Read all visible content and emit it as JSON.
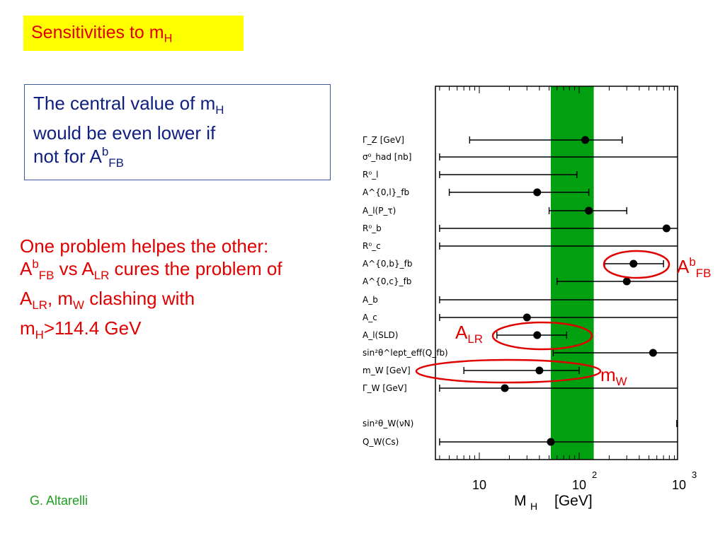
{
  "slide": {
    "title_main": "Sensitivities to m",
    "title_sub": "H",
    "note_line1_main": "The central value of m",
    "note_line1_sub": "H",
    "note_line2": "would be even lower if",
    "note_line3_main": "not for A",
    "note_line3_sup": "b",
    "note_line3_sub": "FB",
    "red_line1": "One problem helpes the other:",
    "red_A": "A",
    "red_b": "b",
    "red_FB": "FB",
    "red_vs": " vs A",
    "red_LR": "LR",
    "red_cures": " cures the problem of A",
    "red_LR2": "LR",
    "red_mw": ", m",
    "red_W": "W",
    "red_clash": " clashing with",
    "red_mH": "m",
    "red_H": "H",
    "red_limit": ">114.4 GeV",
    "credit": "G. Altarelli"
  },
  "annotations": {
    "afb_main": "A",
    "afb_sup": "b",
    "afb_sub": "FB",
    "alr_main": "A",
    "alr_sub": "LR",
    "mw_main": "m",
    "mw_sub": "W",
    "ellipse_color": "#e00000"
  },
  "chart_data": {
    "type": "scatter",
    "xscale": "log",
    "xlim": [
      4,
      1000
    ],
    "xlabel": "M_H [GeV]",
    "xlabel_main": "M",
    "xlabel_sub": "H",
    "xlabel_unit": "[GeV]",
    "xticks": [
      {
        "value": 10,
        "base": "10",
        "exp": ""
      },
      {
        "value": 100,
        "base": "10",
        "exp": "2"
      },
      {
        "value": 1000,
        "base": "10",
        "exp": "3"
      }
    ],
    "band": {
      "x0": 52,
      "x1": 140,
      "color": "#00a010"
    },
    "observables": [
      {
        "label": "Γ_Z [GeV]",
        "central": 115,
        "low": 8,
        "high": 270
      },
      {
        "label": "σ⁰_had [nb]",
        "central": null,
        "low": 4,
        "high": 1000
      },
      {
        "label": "R⁰_l",
        "central": null,
        "low": 4,
        "high": 95
      },
      {
        "label": "A^{0,l}_fb",
        "central": 38,
        "low": 5,
        "high": 125
      },
      {
        "label": "A_l(P_τ)",
        "central": 125,
        "low": 50,
        "high": 300
      },
      {
        "label": "R⁰_b",
        "central": 750,
        "low": 4,
        "high": 1000
      },
      {
        "label": "R⁰_c",
        "central": null,
        "low": 4,
        "high": 1000
      },
      {
        "label": "A^{0,b}_fb",
        "central": 350,
        "low": 180,
        "high": 700
      },
      {
        "label": "A^{0,c}_fb",
        "central": 300,
        "low": 60,
        "high": 1000
      },
      {
        "label": "A_b",
        "central": null,
        "low": 4,
        "high": 1000
      },
      {
        "label": "A_c",
        "central": 30,
        "low": 4,
        "high": 1000
      },
      {
        "label": "A_l(SLD)",
        "central": 38,
        "low": 15,
        "high": 75
      },
      {
        "label": "sin²θ^lept_eff(Q_fb)",
        "central": 550,
        "low": 55,
        "high": 1000
      },
      {
        "label": "m_W [GeV]",
        "central": 40,
        "low": 7,
        "high": 100
      },
      {
        "label": "Γ_W [GeV]",
        "central": 18,
        "low": 4,
        "high": 1000
      },
      {
        "label": "sin²θ_W(νN)",
        "central": null,
        "low": 950,
        "high": 1000
      },
      {
        "label": "Q_W(Cs)",
        "central": 52,
        "low": 4,
        "high": 1000
      }
    ],
    "grid": false
  }
}
